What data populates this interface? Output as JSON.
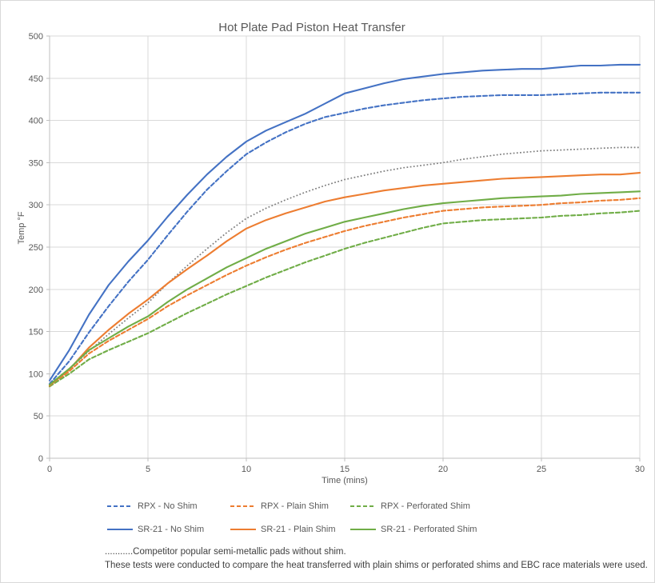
{
  "chart_data": {
    "type": "line",
    "title": "Hot Plate Pad Piston Heat Transfer",
    "xlabel": "Time (mins)",
    "ylabel": "Temp °F",
    "xlim": [
      0,
      30
    ],
    "ylim": [
      0,
      500
    ],
    "x_ticks": [
      0,
      5,
      10,
      15,
      20,
      25,
      30
    ],
    "y_ticks": [
      0,
      50,
      100,
      150,
      200,
      250,
      300,
      350,
      400,
      450,
      500
    ],
    "grid": true,
    "legend_position": "bottom",
    "x": [
      0,
      1,
      2,
      3,
      4,
      5,
      6,
      7,
      8,
      9,
      10,
      11,
      12,
      13,
      14,
      15,
      16,
      17,
      18,
      19,
      20,
      21,
      22,
      23,
      24,
      25,
      26,
      27,
      28,
      29,
      30
    ],
    "series": [
      {
        "name": "RPX - No Shim",
        "color": "#4472C4",
        "style": "dashed",
        "in_legend": true,
        "values": [
          88,
          115,
          149,
          180,
          209,
          235,
          264,
          292,
          318,
          340,
          360,
          374,
          386,
          396,
          404,
          409,
          414,
          418,
          421,
          424,
          426,
          428,
          429,
          430,
          430,
          430,
          431,
          432,
          433,
          433,
          433
        ]
      },
      {
        "name": "RPX - Plain Shim",
        "color": "#ED7D31",
        "style": "dashed",
        "in_legend": true,
        "values": [
          85,
          103,
          124,
          139,
          152,
          165,
          180,
          193,
          205,
          217,
          228,
          238,
          247,
          255,
          262,
          269,
          275,
          280,
          285,
          289,
          293,
          295,
          297,
          298,
          299,
          300,
          302,
          303,
          305,
          306,
          308
        ]
      },
      {
        "name": "RPX - Perforated Shim",
        "color": "#70AD47",
        "style": "dashed",
        "in_legend": true,
        "values": [
          85,
          100,
          117,
          128,
          138,
          148,
          160,
          172,
          183,
          194,
          204,
          214,
          223,
          232,
          240,
          248,
          255,
          261,
          267,
          273,
          278,
          280,
          282,
          283,
          284,
          285,
          287,
          288,
          290,
          291,
          293
        ]
      },
      {
        "name": "SR-21 - No Shim",
        "color": "#4472C4",
        "style": "solid",
        "in_legend": true,
        "values": [
          92,
          128,
          170,
          205,
          233,
          258,
          286,
          312,
          336,
          357,
          375,
          388,
          398,
          408,
          420,
          432,
          438,
          444,
          449,
          452,
          455,
          457,
          459,
          460,
          461,
          461,
          463,
          465,
          465,
          466,
          466
        ]
      },
      {
        "name": "SR-21 - Plain Shim",
        "color": "#ED7D31",
        "style": "solid",
        "in_legend": true,
        "values": [
          86,
          105,
          131,
          152,
          171,
          188,
          207,
          224,
          240,
          257,
          272,
          282,
          290,
          297,
          304,
          309,
          313,
          317,
          320,
          323,
          325,
          327,
          329,
          331,
          332,
          333,
          334,
          335,
          336,
          336,
          338
        ]
      },
      {
        "name": "SR-21 - Perforated Shim",
        "color": "#70AD47",
        "style": "solid",
        "in_legend": true,
        "values": [
          87,
          106,
          128,
          142,
          156,
          168,
          185,
          200,
          213,
          226,
          237,
          248,
          257,
          266,
          273,
          280,
          285,
          290,
          295,
          299,
          302,
          304,
          306,
          308,
          309,
          310,
          311,
          313,
          314,
          315,
          316
        ]
      },
      {
        "name": "Competitor semi-metallic (no shim)",
        "color": "#7F7F7F",
        "style": "dotted",
        "in_legend": false,
        "values": [
          88,
          105,
          127,
          147,
          166,
          184,
          207,
          228,
          248,
          267,
          284,
          296,
          306,
          315,
          323,
          330,
          335,
          340,
          344,
          347,
          350,
          354,
          357,
          360,
          362,
          364,
          365,
          366,
          367,
          368,
          368
        ]
      }
    ],
    "legend_rows": [
      [
        0,
        1,
        2
      ],
      [
        3,
        4,
        5
      ]
    ],
    "colors": {
      "grid": "#d9d9d9",
      "axis": "#bfbfbf",
      "text": "#595959"
    }
  },
  "footnote": {
    "line1": "...........Competitor popular semi-metallic pads without shim.",
    "line2": "These tests were conducted to  compare the heat transferred with plain shims or perforated shims and EBC race materials were used."
  }
}
